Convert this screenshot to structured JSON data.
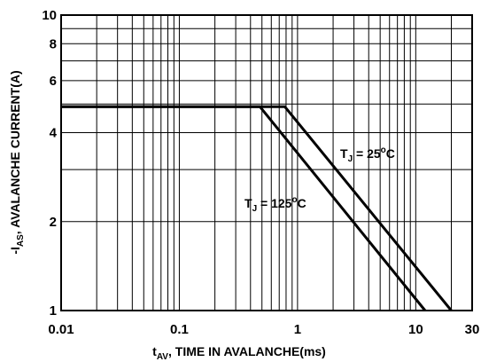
{
  "chart_data": {
    "type": "line",
    "x_scale": "log",
    "y_scale": "log",
    "xlim": [
      0.01,
      30
    ],
    "ylim": [
      1,
      10
    ],
    "grid": true,
    "x_ticks": [
      {
        "value": 0.01,
        "label": "0.01"
      },
      {
        "value": 0.1,
        "label": "0.1"
      },
      {
        "value": 1,
        "label": "1"
      },
      {
        "value": 10,
        "label": "10"
      },
      {
        "value": 30,
        "label": "30"
      }
    ],
    "y_ticks": [
      {
        "value": 1,
        "label": "1"
      },
      {
        "value": 2,
        "label": "2"
      },
      {
        "value": 4,
        "label": "4"
      },
      {
        "value": 6,
        "label": "6"
      },
      {
        "value": 8,
        "label": "8"
      },
      {
        "value": 10,
        "label": "10"
      }
    ],
    "xlabel": {
      "main": "t",
      "sub": "AV",
      "rest": ", TIME IN AVALANCHE(ms)"
    },
    "ylabel": {
      "main": "-I",
      "sub": "AS",
      "rest": ", AVALANCHE CURRENT(A)"
    },
    "series": [
      {
        "label": {
          "main": "T",
          "sub": "J",
          "rest": " = 25",
          "sup": "o",
          "unit": "C"
        },
        "points": [
          [
            0.01,
            4.9
          ],
          [
            0.78,
            4.9
          ],
          [
            20,
            1.0
          ]
        ]
      },
      {
        "label": {
          "main": "T",
          "sub": "J",
          "rest": " = 125",
          "sup": "o",
          "unit": "C"
        },
        "points": [
          [
            0.01,
            4.9
          ],
          [
            0.48,
            4.9
          ],
          [
            12,
            1.0
          ]
        ]
      }
    ]
  }
}
